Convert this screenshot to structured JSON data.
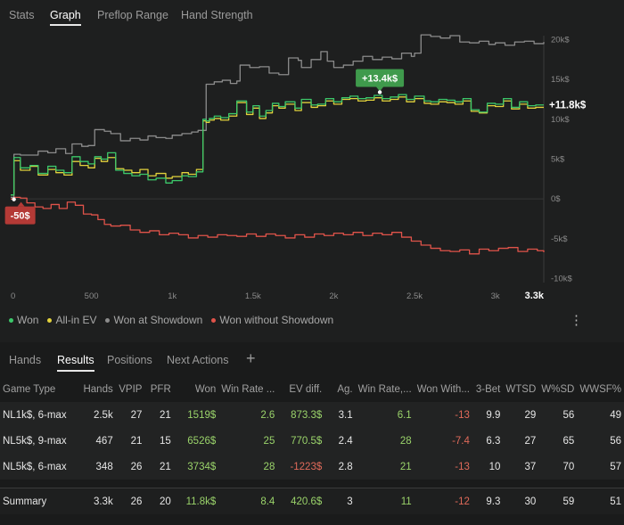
{
  "top_tabs": [
    "Stats",
    "Graph",
    "Preflop Range",
    "Hand Strength"
  ],
  "active_top_tab": "Graph",
  "colors": {
    "won": "#3cc86a",
    "all_in_ev": "#e2d23c",
    "won_at_showdown": "#8c8c8c",
    "won_without_showdown": "#e0534a",
    "badge_positive": "#3f9a4c",
    "badge_negative": "#b43a36",
    "background": "#1e1f1f"
  },
  "chart_data": {
    "type": "line",
    "x_ticks": [
      "0",
      "500",
      "1k",
      "1.5k",
      "2k",
      "2.5k",
      "3k",
      "3.3k"
    ],
    "x_tick_values": [
      0,
      500,
      1000,
      1500,
      2000,
      2500,
      3000,
      3300
    ],
    "xlim": [
      0,
      3300
    ],
    "y_ticks": [
      "20k$",
      "15k$",
      "10k$",
      "5k$",
      "0$",
      "-5k$",
      "-10k$"
    ],
    "y_tick_values": [
      20000,
      15000,
      10000,
      5000,
      0,
      -5000,
      -10000
    ],
    "ylim": [
      -10500,
      20500
    ],
    "grid": false,
    "legend_position": "bottom",
    "series": [
      {
        "name": "Won",
        "color": "#3cc86a",
        "x": [
          0,
          20,
          60,
          120,
          170,
          230,
          280,
          330,
          380,
          430,
          480,
          520,
          560,
          600,
          650,
          700,
          750,
          800,
          850,
          900,
          960,
          1000,
          1060,
          1100,
          1150,
          1190,
          1210,
          1230,
          1260,
          1300,
          1350,
          1400,
          1460,
          1500,
          1540,
          1580,
          1620,
          1660,
          1700,
          1760,
          1800,
          1860,
          1900,
          1950,
          2000,
          2050,
          2100,
          2150,
          2200,
          2250,
          2300,
          2350,
          2400,
          2450,
          2500,
          2560,
          2600,
          2650,
          2700,
          2750,
          2800,
          2850,
          2900,
          2950,
          3000,
          3050,
          3100,
          3150,
          3200,
          3250,
          3300
        ],
        "y": [
          500,
          5200,
          3900,
          4200,
          3200,
          4100,
          3600,
          3300,
          5300,
          4700,
          4400,
          5300,
          5000,
          5800,
          3600,
          3200,
          2900,
          3100,
          2400,
          2600,
          2000,
          2300,
          2900,
          2800,
          3400,
          10000,
          9800,
          10100,
          10400,
          10200,
          10700,
          12300,
          10900,
          11700,
          10400,
          11100,
          12000,
          11600,
          12200,
          11400,
          12500,
          11800,
          11900,
          12600,
          12200,
          12700,
          12900,
          12600,
          12700,
          13000,
          12600,
          12800,
          13100,
          12500,
          12900,
          12300,
          12200,
          12500,
          12400,
          12200,
          12600,
          11200,
          10900,
          12000,
          11900,
          12600,
          11500,
          12200,
          11700,
          11800,
          11800
        ]
      },
      {
        "name": "All-in EV",
        "color": "#e2d23c",
        "x": [
          0,
          20,
          60,
          120,
          170,
          230,
          280,
          330,
          380,
          430,
          480,
          520,
          560,
          600,
          650,
          700,
          750,
          800,
          850,
          900,
          960,
          1000,
          1060,
          1100,
          1150,
          1190,
          1210,
          1230,
          1260,
          1300,
          1350,
          1400,
          1460,
          1500,
          1540,
          1580,
          1620,
          1660,
          1700,
          1760,
          1800,
          1860,
          1900,
          1950,
          2000,
          2050,
          2100,
          2150,
          2200,
          2250,
          2300,
          2350,
          2400,
          2450,
          2500,
          2560,
          2600,
          2650,
          2700,
          2750,
          2800,
          2850,
          2900,
          2950,
          3000,
          3050,
          3100,
          3150,
          3200,
          3250,
          3300
        ],
        "y": [
          500,
          4800,
          3600,
          4100,
          3000,
          3700,
          3300,
          3000,
          4700,
          4200,
          3900,
          5100,
          4700,
          5200,
          3800,
          3600,
          3300,
          3700,
          2900,
          3200,
          2600,
          2800,
          3300,
          3100,
          3700,
          9800,
          9600,
          9900,
          10100,
          9900,
          10400,
          12100,
          10600,
          11400,
          10100,
          10800,
          11700,
          11400,
          11900,
          11100,
          12100,
          11500,
          11700,
          12300,
          11900,
          12500,
          12600,
          12300,
          12400,
          12700,
          12300,
          12500,
          12800,
          12200,
          12600,
          12000,
          11900,
          12200,
          12100,
          11900,
          12300,
          11000,
          10800,
          11700,
          11600,
          12300,
          11300,
          11900,
          11400,
          11500,
          11500
        ]
      },
      {
        "name": "Won at Showdown",
        "color": "#8c8c8c",
        "x": [
          0,
          20,
          60,
          120,
          170,
          230,
          280,
          340,
          380,
          440,
          480,
          520,
          580,
          620,
          680,
          740,
          800,
          850,
          900,
          960,
          1000,
          1060,
          1120,
          1160,
          1190,
          1210,
          1260,
          1310,
          1360,
          1400,
          1420,
          1480,
          1540,
          1600,
          1660,
          1720,
          1780,
          1800,
          1860,
          1920,
          1960,
          2000,
          2060,
          2120,
          2180,
          2240,
          2300,
          2360,
          2420,
          2480,
          2500,
          2540,
          2600,
          2660,
          2720,
          2780,
          2840,
          2900,
          2960,
          3000,
          3060,
          3120,
          3180,
          3240,
          3300
        ],
        "y": [
          200,
          5600,
          5500,
          5500,
          6000,
          5800,
          6300,
          5700,
          6900,
          6600,
          6700,
          8700,
          8500,
          8200,
          7300,
          7600,
          7400,
          7900,
          7700,
          7600,
          8000,
          8200,
          8400,
          8600,
          8600,
          14400,
          14700,
          14900,
          14500,
          14800,
          16800,
          16500,
          16600,
          15800,
          15600,
          17700,
          17400,
          16500,
          17500,
          18500,
          17300,
          16500,
          16800,
          17300,
          17900,
          17500,
          17800,
          17600,
          18300,
          17900,
          18300,
          20600,
          20400,
          20200,
          20500,
          19700,
          19600,
          19800,
          19400,
          19600,
          19300,
          19700,
          19800,
          19500,
          19700
        ]
      },
      {
        "name": "Won without Showdown",
        "color": "#e0534a",
        "x": [
          0,
          20,
          60,
          100,
          150,
          200,
          250,
          300,
          350,
          400,
          450,
          500,
          540,
          580,
          620,
          680,
          740,
          800,
          860,
          920,
          980,
          1040,
          1100,
          1160,
          1220,
          1280,
          1340,
          1400,
          1460,
          1520,
          1580,
          1640,
          1700,
          1760,
          1820,
          1880,
          1940,
          2000,
          2060,
          2120,
          2180,
          2240,
          2300,
          2360,
          2420,
          2480,
          2540,
          2600,
          2660,
          2720,
          2780,
          2840,
          2900,
          2960,
          3020,
          3080,
          3140,
          3200,
          3260,
          3300
        ],
        "y": [
          0,
          200,
          100,
          -500,
          -1000,
          -1200,
          -700,
          -1200,
          -400,
          -800,
          -1900,
          -2000,
          -2600,
          -3200,
          -3400,
          -3300,
          -3900,
          -4200,
          -4000,
          -4500,
          -4300,
          -4500,
          -4900,
          -4600,
          -4800,
          -4500,
          -4600,
          -4700,
          -4400,
          -4700,
          -4400,
          -4600,
          -4900,
          -4500,
          -4800,
          -4400,
          -4600,
          -4300,
          -4500,
          -4200,
          -4600,
          -4300,
          -4500,
          -4200,
          -4800,
          -5300,
          -5800,
          -6200,
          -6500,
          -6600,
          -6400,
          -6900,
          -6300,
          -6500,
          -6200,
          -6100,
          -6600,
          -6300,
          -6500,
          -6700
        ]
      }
    ],
    "annotations": [
      {
        "text": "+13.4k$",
        "x": 2285,
        "y": 13400,
        "style": "positive"
      },
      {
        "text": "-50$",
        "x": 20,
        "y": -50,
        "style": "negative"
      },
      {
        "text": "+11.8k$",
        "x": 3300,
        "y": 11800,
        "style": "end-label"
      }
    ]
  },
  "legend": [
    {
      "label": "Won",
      "color": "#3cc86a"
    },
    {
      "label": "All-in EV",
      "color": "#e2d23c"
    },
    {
      "label": "Won at Showdown",
      "color": "#8c8c8c"
    },
    {
      "label": "Won without Showdown",
      "color": "#e0534a"
    }
  ],
  "menu_icon": "⋮",
  "sub_tabs": [
    "Hands",
    "Results",
    "Positions",
    "Next Actions"
  ],
  "active_sub_tab": "Results",
  "add_tab_icon": "+",
  "table": {
    "columns": [
      "Game Type",
      "Hands",
      "VPIP",
      "PFR",
      "Won",
      "Win Rate ...",
      "EV diff.",
      "Ag.",
      "Win Rate,...",
      "Won With...",
      "3-Bet",
      "WTSD",
      "W%SD",
      "WWSF%"
    ],
    "rows": [
      [
        "NL1k$, 6-max",
        "2.5k",
        "27",
        "21",
        "1519$",
        "2.6",
        "873.3$",
        "3.1",
        "6.1",
        "-13",
        "9.9",
        "29",
        "56",
        "49"
      ],
      [
        "NL5k$, 9-max",
        "467",
        "21",
        "15",
        "6526$",
        "25",
        "770.5$",
        "2.4",
        "28",
        "-7.4",
        "6.3",
        "27",
        "65",
        "56"
      ],
      [
        "NL5k$, 6-max",
        "348",
        "26",
        "21",
        "3734$",
        "28",
        "-1223$",
        "2.8",
        "21",
        "-13",
        "10",
        "37",
        "70",
        "57"
      ]
    ],
    "summary": [
      "Summary",
      "3.3k",
      "26",
      "20",
      "11.8k$",
      "8.4",
      "420.6$",
      "3",
      "11",
      "-12",
      "9.3",
      "30",
      "59",
      "51"
    ]
  }
}
